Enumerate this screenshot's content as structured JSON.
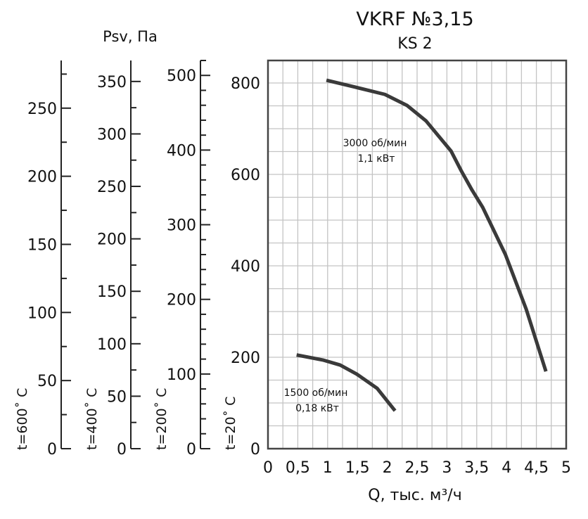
{
  "chart_data": {
    "type": "line",
    "title": "VKRF №3,15",
    "subtitle": "KS 2",
    "xlabel": "Q, тыс. м³/ч",
    "ylabel": "Psv, Па",
    "xlim": [
      0,
      5
    ],
    "ylim": [
      0,
      850
    ],
    "grid": true,
    "x_ticks": [
      "0",
      "0,5",
      "1",
      "1,5",
      "2",
      "2,5",
      "3",
      "3,5",
      "4",
      "4,5",
      "5"
    ],
    "y_ticks": [
      "0",
      "200",
      "400",
      "600",
      "800"
    ],
    "secondary_axes": [
      {
        "label": "t=600˚ C",
        "max": 285,
        "minor_step": 25,
        "ticks": [
          "0",
          "50",
          "100",
          "150",
          "200",
          "250"
        ]
      },
      {
        "label": "t=400˚ C",
        "max": 370,
        "minor_step": 25,
        "ticks": [
          "0",
          "50",
          "100",
          "150",
          "200",
          "250",
          "300",
          "350"
        ]
      },
      {
        "label": "t=200˚ C",
        "max": 520,
        "minor_step": 20,
        "ticks": [
          "0",
          "100",
          "200",
          "300",
          "400",
          "500"
        ]
      },
      {
        "label": "t=20˚ C"
      }
    ],
    "series": [
      {
        "name": "3000 об/мин",
        "power": "1,1 кВт",
        "x": [
          0.98,
          1.46,
          1.96,
          2.33,
          2.65,
          3.07,
          3.24,
          3.42,
          3.6,
          3.98,
          4.33,
          4.66
        ],
        "y": [
          806,
          791,
          775,
          751,
          717,
          651,
          608,
          566,
          528,
          425,
          305,
          169
        ]
      },
      {
        "name": "1500 об/мин",
        "power": "0,18 кВт",
        "x": [
          0.48,
          0.92,
          1.21,
          1.49,
          1.83,
          2.13
        ],
        "y": [
          205,
          194,
          183,
          163,
          132,
          83
        ]
      }
    ],
    "line_color": "#3a3a3a"
  }
}
